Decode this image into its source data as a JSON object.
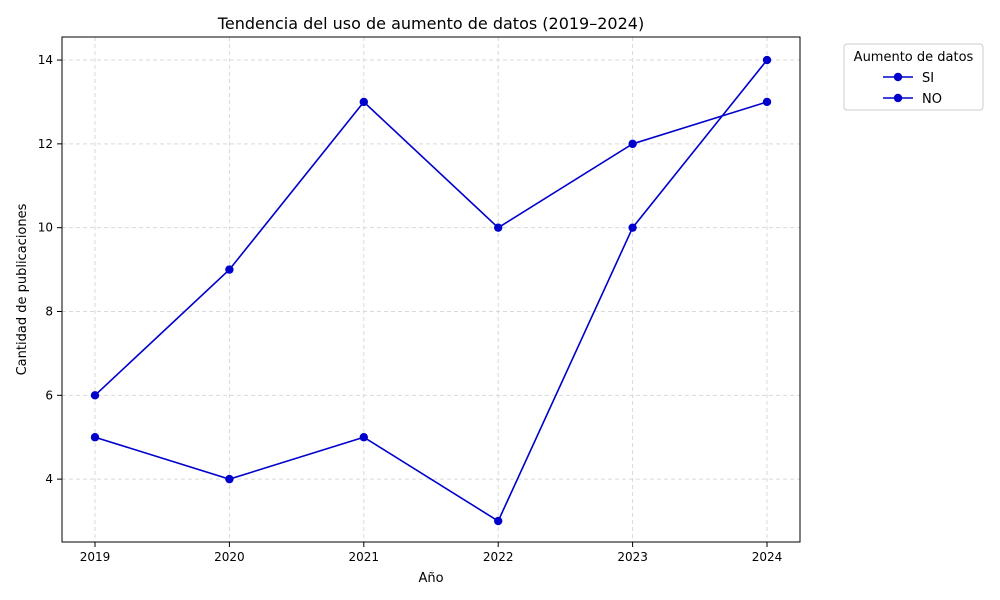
{
  "chart_data": {
    "type": "line",
    "title": "Tendencia del uso de aumento de datos (2019–2024)",
    "xlabel": "Año",
    "ylabel": "Cantidad de publicaciones",
    "x": [
      "2019",
      "2020",
      "2021",
      "2022",
      "2023",
      "2024"
    ],
    "ylim": [
      2.5,
      14.55
    ],
    "yticks": [
      "4",
      "6",
      "8",
      "10",
      "12",
      "14"
    ],
    "grid": true,
    "legend": {
      "title": "Aumento de datos",
      "placement": "outside-right"
    },
    "series": [
      {
        "name": "SI",
        "values": [
          5,
          4,
          5,
          3,
          10,
          14
        ],
        "color": "#0000cd"
      },
      {
        "name": "NO",
        "values": [
          6,
          9,
          13,
          10,
          12,
          13
        ],
        "color": "#0000cd"
      }
    ]
  }
}
